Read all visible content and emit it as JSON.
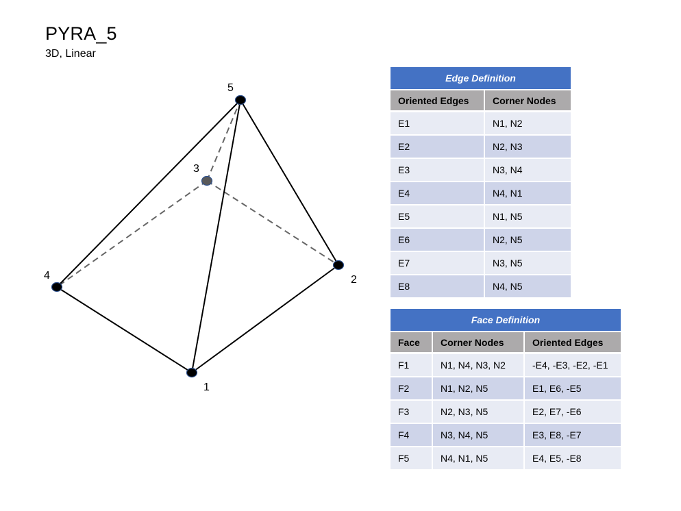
{
  "header": {
    "title": "PYRA_5",
    "subtitle": "3D, Linear"
  },
  "diagram": {
    "nodes": [
      {
        "id": "1",
        "label": "1"
      },
      {
        "id": "2",
        "label": "2"
      },
      {
        "id": "3",
        "label": "3"
      },
      {
        "id": "4",
        "label": "4"
      },
      {
        "id": "5",
        "label": "5"
      }
    ],
    "solid_edges": [
      [
        "1",
        "2"
      ],
      [
        "1",
        "4"
      ],
      [
        "1",
        "5"
      ],
      [
        "2",
        "5"
      ],
      [
        "4",
        "5"
      ]
    ],
    "dashed_edges": [
      [
        "3",
        "2"
      ],
      [
        "3",
        "4"
      ],
      [
        "3",
        "5"
      ]
    ],
    "colors": {
      "solid_edge": "#000000",
      "dashed_edge": "#666666",
      "visible_node": "#000000",
      "hidden_node": "#595959",
      "node_outline": "#2f528f"
    }
  },
  "edge_table": {
    "caption": "Edge Definition",
    "columns": [
      "Oriented Edges",
      "Corner Nodes"
    ],
    "rows": [
      [
        "E1",
        "N1, N2"
      ],
      [
        "E2",
        "N2, N3"
      ],
      [
        "E3",
        "N3, N4"
      ],
      [
        "E4",
        "N4, N1"
      ],
      [
        "E5",
        "N1, N5"
      ],
      [
        "E6",
        "N2, N5"
      ],
      [
        "E7",
        "N3, N5"
      ],
      [
        "E8",
        "N4, N5"
      ]
    ]
  },
  "face_table": {
    "caption": "Face Definition",
    "columns": [
      "Face",
      "Corner Nodes",
      "Oriented Edges"
    ],
    "rows": [
      [
        "F1",
        "N1, N4, N3, N2",
        "-E4, -E3, -E2, -E1"
      ],
      [
        "F2",
        "N1, N2, N5",
        "E1, E6, -E5"
      ],
      [
        "F3",
        "N2, N3, N5",
        "E2, E7, -E6"
      ],
      [
        "F4",
        "N3, N4, N5",
        "E3, E8, -E7"
      ],
      [
        "F5",
        "N4, N1, N5",
        "E4, E5, -E8"
      ]
    ]
  },
  "theme": {
    "caption_bg": "#4472c4",
    "header_bg": "#acaaab",
    "row_light": "#e8ebf4",
    "row_dark": "#ced4e9"
  }
}
